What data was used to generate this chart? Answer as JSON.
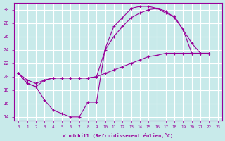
{
  "background_color": "#c8eaea",
  "grid_color": "#ffffff",
  "line_color": "#990099",
  "marker": "+",
  "xlabel": "Windchill (Refroidissement éolien,°C)",
  "tick_color": "#990099",
  "ylim": [
    13.5,
    31
  ],
  "xlim": [
    -0.5,
    23.5
  ],
  "yticks": [
    14,
    16,
    18,
    20,
    22,
    24,
    26,
    28,
    30
  ],
  "xticks": [
    0,
    1,
    2,
    3,
    4,
    5,
    6,
    7,
    8,
    9,
    10,
    11,
    12,
    13,
    14,
    15,
    16,
    17,
    18,
    19,
    20,
    21,
    22,
    23
  ],
  "curves": [
    {
      "x": [
        0,
        1,
        2,
        3,
        4,
        5,
        6,
        7,
        8,
        9,
        10,
        11,
        12,
        13,
        14,
        15,
        16,
        17,
        18,
        19,
        20,
        21,
        22
      ],
      "y": [
        20.5,
        19.0,
        18.5,
        16.5,
        15.0,
        14.5,
        14.0,
        14.0,
        16.2,
        16.2,
        24.2,
        27.5,
        28.8,
        30.2,
        30.5,
        30.5,
        30.2,
        29.5,
        29.0,
        27.0,
        25.0,
        23.5,
        23.5
      ]
    },
    {
      "x": [
        0,
        1,
        2,
        3,
        4,
        5,
        6,
        7,
        8,
        9,
        10,
        11,
        12,
        13,
        14,
        15,
        16,
        17,
        18,
        19,
        20,
        21,
        22
      ],
      "y": [
        20.5,
        19.0,
        18.5,
        19.5,
        19.8,
        19.8,
        19.8,
        19.8,
        19.8,
        20.0,
        24.0,
        26.0,
        27.5,
        28.8,
        29.5,
        30.0,
        30.2,
        29.8,
        28.8,
        27.0,
        23.5,
        23.5,
        23.5
      ]
    },
    {
      "x": [
        0,
        1,
        2,
        3,
        4,
        5,
        6,
        7,
        8,
        9,
        10,
        11,
        12,
        13,
        14,
        15,
        16,
        17,
        18,
        19,
        20,
        21,
        22
      ],
      "y": [
        20.5,
        19.5,
        19.0,
        19.5,
        19.8,
        19.8,
        19.8,
        19.8,
        19.8,
        20.0,
        20.5,
        21.0,
        21.5,
        22.0,
        22.5,
        23.0,
        23.2,
        23.5,
        23.5,
        23.5,
        23.5,
        23.5,
        23.5
      ]
    }
  ]
}
